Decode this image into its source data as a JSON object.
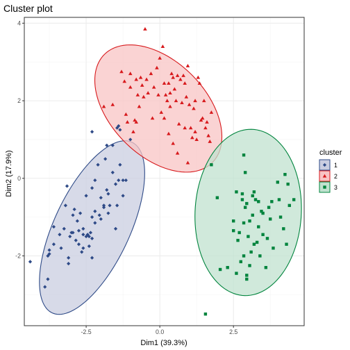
{
  "chart_data": {
    "type": "scatter",
    "title": "Cluster plot",
    "xlabel": "Dim1 (39.3%)",
    "ylabel": "Dim2 (17.9%)",
    "xlim": [
      -4.6,
      4.9
    ],
    "ylim": [
      -3.8,
      4.15
    ],
    "x_ticks": [
      -2.5,
      0.0,
      2.5
    ],
    "x_tick_labels": [
      "-2.5",
      "0.0",
      "2.5"
    ],
    "y_ticks": [
      -2,
      0,
      2,
      4
    ],
    "y_tick_labels": [
      "-2",
      "0",
      "2",
      "4"
    ],
    "grid": true,
    "legend": {
      "title": "cluster",
      "position": "right",
      "entries": [
        "1",
        "2",
        "3"
      ]
    },
    "colors": {
      "cluster_1": "#2E4A87",
      "cluster_1_fill": "#c9cde0",
      "cluster_2": "#D7191C",
      "cluster_2_fill": "#f8c4c4",
      "cluster_3": "#00843D",
      "cluster_3_fill": "#c0e2cf",
      "grid_major": "#ebebeb",
      "grid_minor": "#f5f5f5",
      "panel_border": "#333333"
    },
    "series": [
      {
        "name": "1",
        "marker": "diamond",
        "ellipse": {
          "cx": -2.3,
          "cy": -1.27,
          "rx": 2.6,
          "ry": 1.2,
          "angle_deg": 55
        },
        "points": [
          [
            -4.4,
            -2.15
          ],
          [
            -3.9,
            -2.8
          ],
          [
            -3.8,
            -2.6
          ],
          [
            -3.8,
            -2.0
          ],
          [
            -3.75,
            -1.85
          ],
          [
            -3.75,
            -1.95
          ],
          [
            -3.6,
            -1.25
          ],
          [
            -3.6,
            -1.7
          ],
          [
            -3.4,
            -1.45
          ],
          [
            -3.35,
            -1.8
          ],
          [
            -3.25,
            -1.3
          ],
          [
            -3.2,
            -0.7
          ],
          [
            -3.15,
            -0.2
          ],
          [
            -3.1,
            -2.2
          ],
          [
            -3.1,
            -2.05
          ],
          [
            -3.05,
            -1.5
          ],
          [
            -3.0,
            -1.4
          ],
          [
            -2.95,
            -0.95
          ],
          [
            -2.95,
            -1.4
          ],
          [
            -2.9,
            -0.8
          ],
          [
            -2.85,
            -1.6
          ],
          [
            -2.8,
            -1.1
          ],
          [
            -2.75,
            -1.7
          ],
          [
            -2.75,
            -1.35
          ],
          [
            -2.7,
            -0.9
          ],
          [
            -2.65,
            -1.9
          ],
          [
            -2.6,
            -1.8
          ],
          [
            -2.6,
            -1.3
          ],
          [
            -2.6,
            -1.45
          ],
          [
            -2.5,
            -0.45
          ],
          [
            -2.5,
            -1.5
          ],
          [
            -2.45,
            -1.45
          ],
          [
            -2.4,
            -1.5
          ],
          [
            -2.4,
            -1.75
          ],
          [
            -2.35,
            -1.4
          ],
          [
            -2.3,
            -0.25
          ],
          [
            -2.3,
            -1.0
          ],
          [
            -2.3,
            -2.05
          ],
          [
            -2.3,
            -1.55
          ],
          [
            -2.2,
            -0.05
          ],
          [
            -2.2,
            -0.85
          ],
          [
            -2.2,
            -1.15
          ],
          [
            -2.1,
            0.35
          ],
          [
            -2.05,
            -0.95
          ],
          [
            -2.0,
            -0.5
          ],
          [
            -2.0,
            -1.05
          ],
          [
            -1.9,
            -0.7
          ],
          [
            -1.9,
            -0.75
          ],
          [
            -1.85,
            0.5
          ],
          [
            -1.8,
            -0.3
          ],
          [
            -1.75,
            -0.4
          ],
          [
            -1.75,
            -0.9
          ],
          [
            -1.7,
            -0.7
          ],
          [
            -1.6,
            0.15
          ],
          [
            -1.6,
            0.85
          ],
          [
            -1.5,
            -0.15
          ],
          [
            -1.5,
            -1.3
          ],
          [
            -1.45,
            -0.7
          ],
          [
            -1.4,
            -0.05
          ],
          [
            -1.35,
            0.35
          ],
          [
            -1.25,
            -0.05
          ],
          [
            -1.25,
            -0.45
          ],
          [
            -1.15,
            -0.05
          ],
          [
            -1.0,
            1.0
          ],
          [
            -2.3,
            1.2
          ],
          [
            -1.8,
            0.85
          ],
          [
            -1.45,
            1.3
          ],
          [
            -1.4,
            1.35
          ],
          [
            -1.35,
            1.25
          ]
        ]
      },
      {
        "name": "2",
        "marker": "triangle",
        "ellipse": {
          "cx": -0.05,
          "cy": 1.8,
          "rx": 2.35,
          "ry": 1.35,
          "angle_deg": -29
        },
        "points": [
          [
            -0.5,
            3.85
          ],
          [
            -0.7,
            1.85
          ],
          [
            -0.8,
            1.45
          ],
          [
            -0.85,
            1.5
          ],
          [
            -0.9,
            1.2
          ],
          [
            -1.1,
            1.45
          ],
          [
            -1.0,
            2.35
          ],
          [
            -1.15,
            1.65
          ],
          [
            -1.6,
            1.9
          ],
          [
            -1.9,
            1.85
          ],
          [
            -1.3,
            2.75
          ],
          [
            -1.2,
            2.5
          ],
          [
            -1.0,
            2.7
          ],
          [
            -0.8,
            2.55
          ],
          [
            -0.75,
            2.15
          ],
          [
            -0.65,
            2.6
          ],
          [
            -0.6,
            2.4
          ],
          [
            -0.55,
            2.1
          ],
          [
            -0.45,
            2.55
          ],
          [
            -0.4,
            2.2
          ],
          [
            -0.3,
            2.7
          ],
          [
            -0.2,
            2.35
          ],
          [
            -0.1,
            2.85
          ],
          [
            -0.05,
            2.15
          ],
          [
            0.0,
            3.1
          ],
          [
            0.1,
            3.4
          ],
          [
            0.15,
            2.45
          ],
          [
            0.2,
            2.15
          ],
          [
            0.25,
            2.0
          ],
          [
            0.3,
            2.45
          ],
          [
            0.35,
            2.2
          ],
          [
            0.4,
            2.7
          ],
          [
            0.45,
            2.6
          ],
          [
            0.5,
            2.3
          ],
          [
            0.55,
            2.0
          ],
          [
            0.6,
            2.65
          ],
          [
            0.65,
            1.4
          ],
          [
            0.7,
            2.55
          ],
          [
            0.75,
            1.95
          ],
          [
            0.8,
            2.65
          ],
          [
            0.85,
            2.45
          ],
          [
            0.9,
            2.1
          ],
          [
            0.95,
            2.9
          ],
          [
            1.0,
            1.9
          ],
          [
            1.05,
            1.3
          ],
          [
            1.1,
            1.05
          ],
          [
            1.15,
            1.8
          ],
          [
            1.2,
            1.2
          ],
          [
            1.25,
            1.0
          ],
          [
            1.3,
            2.6
          ],
          [
            1.35,
            2.45
          ],
          [
            1.4,
            1.5
          ],
          [
            1.45,
            1.55
          ],
          [
            1.5,
            2.0
          ],
          [
            1.55,
            1.3
          ],
          [
            1.6,
            1.45
          ],
          [
            1.65,
            1.1
          ],
          [
            1.7,
            0.95
          ],
          [
            1.75,
            1.7
          ],
          [
            0.35,
            1.85
          ],
          [
            0.05,
            1.7
          ],
          [
            0.15,
            1.55
          ],
          [
            0.3,
            1.15
          ],
          [
            0.45,
            0.9
          ],
          [
            0.6,
            0.65
          ],
          [
            0.85,
            1.3
          ],
          [
            0.95,
            0.4
          ],
          [
            1.2,
            2.0
          ],
          [
            -0.25,
            1.55
          ]
        ]
      },
      {
        "name": "3",
        "marker": "square",
        "ellipse": {
          "cx": 3.0,
          "cy": -0.88,
          "rx": 2.15,
          "ry": 1.8,
          "angle_deg": 82
        },
        "points": [
          [
            1.55,
            -3.5
          ],
          [
            1.75,
            0.35
          ],
          [
            1.95,
            -0.5
          ],
          [
            2.05,
            -2.35
          ],
          [
            2.3,
            -2.3
          ],
          [
            2.5,
            -1.35
          ],
          [
            2.5,
            -1.1
          ],
          [
            2.6,
            -2.45
          ],
          [
            2.65,
            -1.6
          ],
          [
            2.7,
            -1.4
          ],
          [
            2.75,
            -2.15
          ],
          [
            2.8,
            -0.4
          ],
          [
            2.8,
            -0.55
          ],
          [
            2.85,
            -1.15
          ],
          [
            2.85,
            -2.0
          ],
          [
            2.9,
            -0.75
          ],
          [
            2.95,
            -2.5
          ],
          [
            2.95,
            -2.6
          ],
          [
            2.95,
            -0.65
          ],
          [
            3.0,
            -1.5
          ],
          [
            3.05,
            -1.1
          ],
          [
            3.05,
            -2.25
          ],
          [
            3.1,
            -1.9
          ],
          [
            3.15,
            -0.45
          ],
          [
            3.15,
            -0.95
          ],
          [
            3.2,
            -1.7
          ],
          [
            3.25,
            -0.55
          ],
          [
            3.3,
            -1.65
          ],
          [
            3.35,
            -0.6
          ],
          [
            3.35,
            -1.25
          ],
          [
            3.4,
            -2.0
          ],
          [
            3.45,
            -0.85
          ],
          [
            3.5,
            -1.45
          ],
          [
            3.6,
            -2.3
          ],
          [
            3.65,
            -1.55
          ],
          [
            3.7,
            -0.75
          ],
          [
            3.75,
            -1.05
          ],
          [
            3.8,
            -0.6
          ],
          [
            3.85,
            -1.8
          ],
          [
            4.0,
            -0.1
          ],
          [
            4.05,
            -0.55
          ],
          [
            4.1,
            -1.0
          ],
          [
            4.2,
            -1.3
          ],
          [
            4.25,
            0.1
          ],
          [
            4.3,
            -1.7
          ],
          [
            4.35,
            -0.15
          ],
          [
            4.4,
            -0.7
          ],
          [
            4.55,
            -0.55
          ],
          [
            2.85,
            0.6
          ],
          [
            3.2,
            -0.35
          ],
          [
            3.5,
            -0.9
          ],
          [
            2.6,
            -0.35
          ],
          [
            2.9,
            0.15
          ]
        ]
      }
    ]
  }
}
